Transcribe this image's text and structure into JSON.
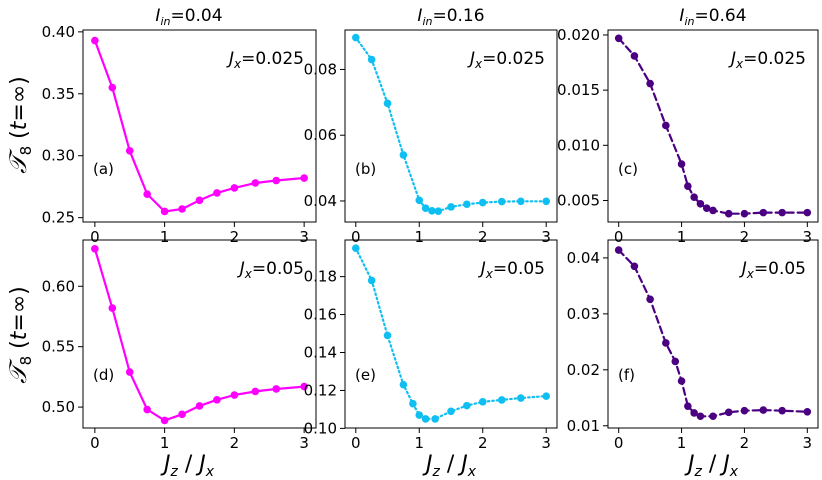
{
  "figure": {
    "y_axis_label": "𝒯₈ (t=∞)",
    "x_axis_label": "J_z / J_x",
    "column_titles": [
      "I_in = 0.04",
      "I_in = 0.16",
      "I_in = 0.64"
    ],
    "colors": {
      "magenta": "#ff00ff",
      "cyan": "#0fbff2",
      "purple": "#4b0082"
    }
  },
  "chart_data": [
    {
      "type": "line",
      "label": "(a)",
      "annotation": "J_x = 0.025",
      "line_style": "solid",
      "color": "#ff00ff",
      "x": [
        0,
        0.25,
        0.5,
        0.75,
        1.0,
        1.25,
        1.5,
        1.75,
        2.0,
        2.3,
        2.6,
        3.0
      ],
      "y": [
        0.393,
        0.355,
        0.304,
        0.269,
        0.255,
        0.257,
        0.264,
        0.27,
        0.274,
        0.278,
        0.28,
        0.282
      ],
      "xlim": [
        -0.17,
        3.17
      ],
      "ylim": [
        0.2465,
        0.4015
      ],
      "yticks": [
        0.25,
        0.3,
        0.35,
        0.4
      ],
      "ytick_labels": [
        "0.25",
        "0.30",
        "0.35",
        "0.40"
      ],
      "xticks": [
        0,
        1,
        2,
        3
      ],
      "xtick_labels": [
        "0",
        "1",
        "2",
        "3"
      ]
    },
    {
      "type": "line",
      "label": "(b)",
      "annotation": "J_x = 0.025",
      "line_style": "dotted",
      "color": "#0fbff2",
      "x": [
        0,
        0.25,
        0.5,
        0.75,
        1.0,
        1.1,
        1.2,
        1.3,
        1.5,
        1.75,
        2.0,
        2.3,
        2.6,
        3.0
      ],
      "y": [
        0.0897,
        0.083,
        0.0697,
        0.054,
        0.0402,
        0.0378,
        0.037,
        0.0369,
        0.0382,
        0.039,
        0.0395,
        0.0398,
        0.0399,
        0.0399
      ],
      "xlim": [
        -0.17,
        3.17
      ],
      "ylim": [
        0.0336,
        0.092
      ],
      "yticks": [
        0.04,
        0.06,
        0.08
      ],
      "ytick_labels": [
        "0.04",
        "0.06",
        "0.08"
      ],
      "xticks": [
        0,
        1,
        2,
        3
      ],
      "xtick_labels": [
        "0",
        "1",
        "2",
        "3"
      ]
    },
    {
      "type": "line",
      "label": "(c)",
      "annotation": "J_x = 0.025",
      "line_style": "dashed",
      "color": "#4b0082",
      "x": [
        0,
        0.25,
        0.5,
        0.75,
        1.0,
        1.1,
        1.2,
        1.3,
        1.4,
        1.5,
        1.75,
        2.0,
        2.3,
        2.6,
        3.0
      ],
      "y": [
        0.0197,
        0.0181,
        0.0156,
        0.0118,
        0.0083,
        0.0063,
        0.0053,
        0.0047,
        0.0043,
        0.0041,
        0.0038,
        0.0038,
        0.0039,
        0.0039,
        0.0039
      ],
      "xlim": [
        -0.17,
        3.17
      ],
      "ylim": [
        0.00305,
        0.02045
      ],
      "yticks": [
        0.005,
        0.01,
        0.015,
        0.02
      ],
      "ytick_labels": [
        "0.005",
        "0.010",
        "0.015",
        "0.020"
      ],
      "xticks": [
        0,
        1,
        2,
        3
      ],
      "xtick_labels": [
        "0",
        "1",
        "2",
        "3"
      ]
    },
    {
      "type": "line",
      "label": "(d)",
      "annotation": "J_x = 0.05",
      "line_style": "solid",
      "color": "#ff00ff",
      "x": [
        0,
        0.25,
        0.5,
        0.75,
        1.0,
        1.25,
        1.5,
        1.75,
        2.0,
        2.3,
        2.6,
        3.0
      ],
      "y": [
        0.631,
        0.582,
        0.529,
        0.498,
        0.489,
        0.494,
        0.501,
        0.506,
        0.51,
        0.513,
        0.515,
        0.517
      ],
      "xlim": [
        -0.17,
        3.17
      ],
      "ylim": [
        0.4827,
        0.6383
      ],
      "yticks": [
        0.5,
        0.55,
        0.6
      ],
      "ytick_labels": [
        "0.50",
        "0.55",
        "0.60"
      ],
      "xticks": [
        0,
        1,
        2,
        3
      ],
      "xtick_labels": [
        "0",
        "1",
        "2",
        "3"
      ]
    },
    {
      "type": "line",
      "label": "(e)",
      "annotation": "J_x = 0.05",
      "line_style": "dotted",
      "color": "#0fbff2",
      "x": [
        0,
        0.25,
        0.5,
        0.75,
        0.9,
        1.0,
        1.1,
        1.25,
        1.5,
        1.75,
        2.0,
        2.3,
        2.6,
        3.0
      ],
      "y": [
        0.195,
        0.178,
        0.149,
        0.123,
        0.113,
        0.107,
        0.105,
        0.105,
        0.109,
        0.112,
        0.114,
        0.115,
        0.116,
        0.117
      ],
      "xlim": [
        -0.17,
        3.17
      ],
      "ylim": [
        0.1002,
        0.1993
      ],
      "yticks": [
        0.1,
        0.12,
        0.14,
        0.16,
        0.18
      ],
      "ytick_labels": [
        "0.10",
        "0.12",
        "0.14",
        "0.16",
        "0.18"
      ],
      "xticks": [
        0,
        1,
        2,
        3
      ],
      "xtick_labels": [
        "0",
        "1",
        "2",
        "3"
      ]
    },
    {
      "type": "line",
      "label": "(f)",
      "annotation": "J_x = 0.05",
      "line_style": "dashed",
      "color": "#4b0082",
      "x": [
        0,
        0.25,
        0.5,
        0.75,
        0.9,
        1.0,
        1.1,
        1.2,
        1.3,
        1.5,
        1.75,
        2.0,
        2.3,
        2.6,
        3.0
      ],
      "y": [
        0.0414,
        0.0385,
        0.0326,
        0.0248,
        0.0215,
        0.018,
        0.0135,
        0.0123,
        0.0117,
        0.0117,
        0.0124,
        0.0127,
        0.0128,
        0.0127,
        0.0125
      ],
      "xlim": [
        -0.17,
        3.17
      ],
      "ylim": [
        0.0096,
        0.0432
      ],
      "yticks": [
        0.01,
        0.02,
        0.03,
        0.04
      ],
      "ytick_labels": [
        "0.01",
        "0.02",
        "0.03",
        "0.04"
      ],
      "xticks": [
        0,
        1,
        2,
        3
      ],
      "xtick_labels": [
        "0",
        "1",
        "2",
        "3"
      ]
    }
  ]
}
